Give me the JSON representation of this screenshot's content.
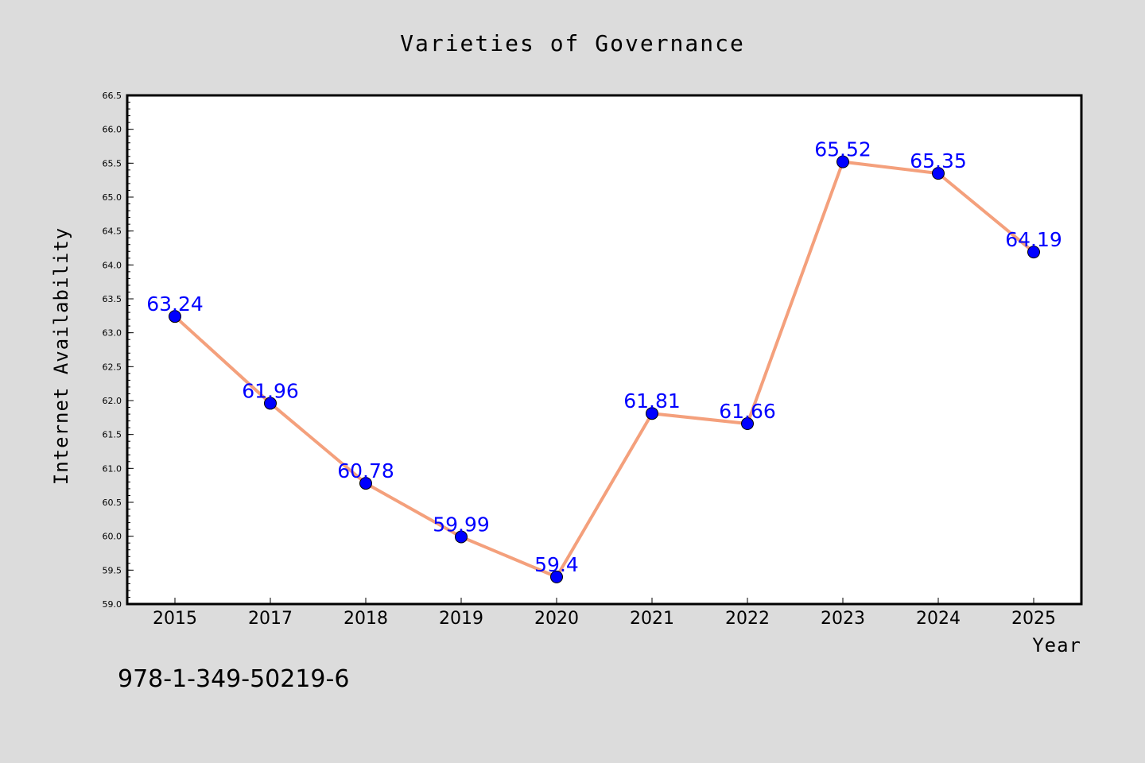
{
  "chart_data": {
    "type": "line",
    "title": "Varieties of Governance",
    "xlabel": "Year",
    "ylabel": "Internet Availability",
    "categories": [
      "2015",
      "2017",
      "2018",
      "2019",
      "2020",
      "2021",
      "2022",
      "2023",
      "2024",
      "2025"
    ],
    "series": [
      {
        "values": [
          63.24,
          61.96,
          60.78,
          59.99,
          59.4,
          61.81,
          61.66,
          65.52,
          65.35,
          64.19
        ],
        "line_color": "#f4a07c",
        "marker_color": "#0000ff"
      }
    ],
    "data_labels": [
      "63.24",
      "61.96",
      "60.78",
      "59.99",
      "59.4",
      "61.81",
      "61.66",
      "65.52",
      "65.35",
      "64.19"
    ],
    "ylim": [
      59.0,
      66.5
    ],
    "yticks": [
      "59.0",
      "59.5",
      "60.0",
      "60.5",
      "61.0",
      "61.5",
      "62.0",
      "62.5",
      "63.0",
      "63.5",
      "64.0",
      "64.5",
      "65.0",
      "65.5",
      "66.0",
      "66.5"
    ],
    "grid": false,
    "legend": "none",
    "background": "#dcdcdc",
    "plot_background": "#ffffff",
    "label_color": "#0000ff"
  },
  "annotation": "978-1-349-50219-6"
}
